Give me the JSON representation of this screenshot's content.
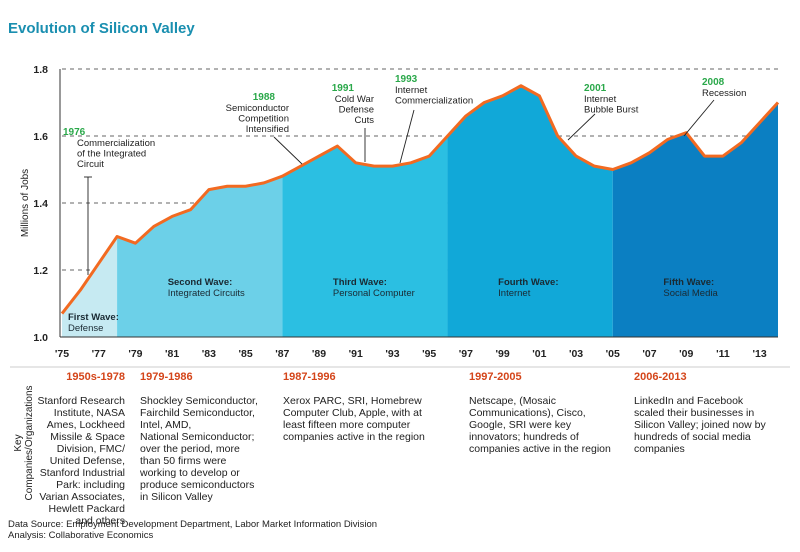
{
  "title": "Evolution of Silicon Valley",
  "chart_data": {
    "type": "area",
    "ylabel": "Millions of Jobs",
    "xlabel": "",
    "ylim": [
      1.0,
      1.8
    ],
    "yticks": [
      "1.0",
      "1.2",
      "1.4",
      "1.6",
      "1.8"
    ],
    "xticks": [
      {
        "year": 1975,
        "label": "'75"
      },
      {
        "year": 1977,
        "label": "'77"
      },
      {
        "year": 1979,
        "label": "'79"
      },
      {
        "year": 1981,
        "label": "'81"
      },
      {
        "year": 1983,
        "label": "'83"
      },
      {
        "year": 1985,
        "label": "'85"
      },
      {
        "year": 1987,
        "label": "'87"
      },
      {
        "year": 1989,
        "label": "'89"
      },
      {
        "year": 1991,
        "label": "'91"
      },
      {
        "year": 1993,
        "label": "'93"
      },
      {
        "year": 1995,
        "label": "'95"
      },
      {
        "year": 1997,
        "label": "'97"
      },
      {
        "year": 1999,
        "label": "'99"
      },
      {
        "year": 2001,
        "label": "'01"
      },
      {
        "year": 2003,
        "label": "'03"
      },
      {
        "year": 2005,
        "label": "'05"
      },
      {
        "year": 2007,
        "label": "'07"
      },
      {
        "year": 2009,
        "label": "'09"
      },
      {
        "year": 2011,
        "label": "'11"
      },
      {
        "year": 2013,
        "label": "'13"
      }
    ],
    "x": [
      1975,
      1976,
      1977,
      1978,
      1979,
      1980,
      1981,
      1982,
      1983,
      1984,
      1985,
      1986,
      1987,
      1988,
      1989,
      1990,
      1991,
      1992,
      1993,
      1994,
      1995,
      1996,
      1997,
      1998,
      1999,
      2000,
      2001,
      2002,
      2003,
      2004,
      2005,
      2006,
      2007,
      2008,
      2009,
      2010,
      2011,
      2012,
      2013,
      2014
    ],
    "y": [
      1.07,
      1.14,
      1.22,
      1.3,
      1.28,
      1.33,
      1.36,
      1.38,
      1.44,
      1.45,
      1.45,
      1.46,
      1.48,
      1.51,
      1.54,
      1.57,
      1.52,
      1.51,
      1.51,
      1.52,
      1.54,
      1.6,
      1.66,
      1.7,
      1.72,
      1.75,
      1.72,
      1.6,
      1.54,
      1.51,
      1.5,
      1.52,
      1.55,
      1.59,
      1.61,
      1.54,
      1.54,
      1.58,
      1.64,
      1.7
    ],
    "waves": [
      {
        "title": "First Wave:",
        "subtitle": "Defense",
        "start": 1975,
        "end": 1978,
        "color": "#c6eaf2"
      },
      {
        "title": "Second Wave:",
        "subtitle": "Integrated Circuits",
        "start": 1978,
        "end": 1987,
        "color": "#6cd0e8"
      },
      {
        "title": "Third Wave:",
        "subtitle": "Personal Computer",
        "start": 1987,
        "end": 1996,
        "color": "#2bbfe2"
      },
      {
        "title": "Fourth Wave:",
        "subtitle": "Internet",
        "start": 1996,
        "end": 2005,
        "color": "#11a8d8"
      },
      {
        "title": "Fifth Wave:",
        "subtitle": "Social Media",
        "start": 2005,
        "end": 2014,
        "color": "#0b7fc2"
      }
    ],
    "annotations": [
      {
        "year": "1976",
        "text": [
          "Commercialization",
          "of the Integrated",
          "Circuit"
        ]
      },
      {
        "year": "1988",
        "text": [
          "Semiconductor",
          "Competition",
          "Intensified"
        ]
      },
      {
        "year": "1991",
        "text": [
          "Cold War",
          "Defense",
          "Cuts"
        ]
      },
      {
        "year": "1993",
        "text": [
          "Internet",
          "Commercialization"
        ]
      },
      {
        "year": "2001",
        "text": [
          "Internet",
          "Bubble Burst"
        ]
      },
      {
        "year": "2008",
        "text": [
          "Recession"
        ]
      }
    ],
    "colors": {
      "line": "#f26a21",
      "annotation_year": "#2aa84a",
      "era_year": "#d4451a"
    }
  },
  "companies_label": "Key Companies/Organizations",
  "eras": [
    {
      "years": "1950s-1978",
      "lines": [
        "Stanford Research",
        "Institute, NASA",
        "Ames, Lockheed",
        "Missile & Space",
        "Division, FMC/",
        "United Defense,",
        "Stanford Industrial",
        "Park: including",
        "Varian Associates,",
        "Hewlett Packard",
        "and others"
      ]
    },
    {
      "years": "1979-1986",
      "lines": [
        "Shockley Semiconductor,",
        "Fairchild Semiconductor,",
        "Intel, AMD,",
        "National Semiconductor;",
        "over the period, more",
        "than 50 firms were",
        "working to develop or",
        "produce semiconductors",
        "in Silicon Valley"
      ]
    },
    {
      "years": "1987-1996",
      "lines": [
        "Xerox PARC, SRI, Homebrew",
        "Computer Club, Apple, with at",
        "least fifteen more computer",
        "companies active in the region"
      ]
    },
    {
      "years": "1997-2005",
      "lines": [
        "Netscape, (Mosaic",
        "Communications), Cisco,",
        "Google, SRI were key",
        "innovators; hundreds of",
        "companies active in the region"
      ]
    },
    {
      "years": "2006-2013",
      "lines": [
        "LinkedIn and Facebook",
        "scaled their businesses in",
        "Silicon Valley; joined now by",
        "hundreds of social media",
        "companies"
      ]
    }
  ],
  "source": [
    "Data Source: Employment Development Department, Labor Market Information Division",
    "Analysis: Collaborative Economics"
  ]
}
